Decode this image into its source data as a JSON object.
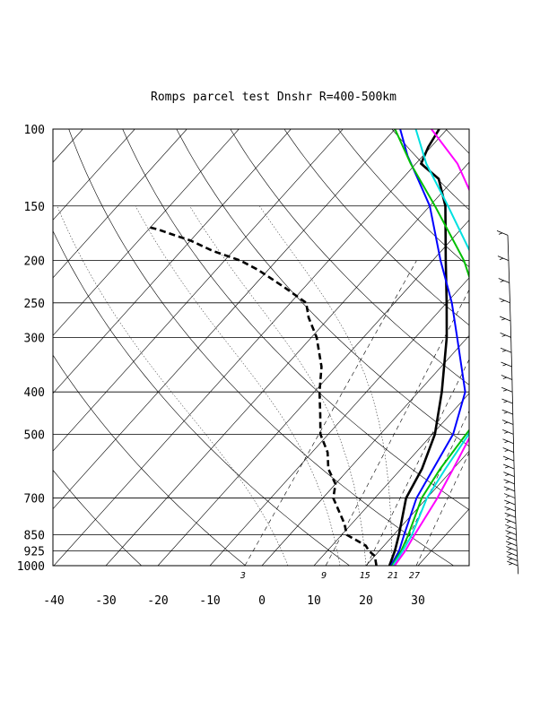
{
  "chart_data": {
    "type": "line",
    "diagram": "skew-T log-P",
    "title": "Romps parcel test Dnshr R=400-500km",
    "xlabel": "",
    "ylabel": "",
    "xlim": [
      -40,
      40
    ],
    "ylim": [
      1000,
      100
    ],
    "y_scale": "log",
    "x_ticks": [
      "-40",
      "-30",
      "-20",
      "-10",
      "0",
      "10",
      "20",
      "30"
    ],
    "x_tick_values": [
      -40,
      -30,
      -20,
      -10,
      0,
      10,
      20,
      30
    ],
    "p_ticks": [
      "100",
      "150",
      "200",
      "250",
      "300",
      "400",
      "500",
      "700",
      "850",
      "925",
      "1000"
    ],
    "p_tick_values": [
      100,
      150,
      200,
      250,
      300,
      400,
      500,
      700,
      850,
      925,
      1000
    ],
    "mixing_ratio_labels": [
      "3",
      "9",
      "15",
      "21",
      "27"
    ],
    "mixing_ratio_values": [
      3,
      9,
      15,
      21,
      27
    ],
    "grid": true,
    "series": [
      {
        "color": "#000000",
        "style": "solid",
        "values": [
          [
            1000,
            24.5
          ],
          [
            925,
            23.0
          ],
          [
            850,
            21.0
          ],
          [
            700,
            16.0
          ],
          [
            600,
            14.0
          ],
          [
            500,
            10.5
          ],
          [
            400,
            4.5
          ],
          [
            300,
            -4.0
          ],
          [
            250,
            -10.0
          ],
          [
            200,
            -17.5
          ],
          [
            150,
            -27.0
          ],
          [
            130,
            -33.0
          ],
          [
            120,
            -39.0
          ],
          [
            110,
            -40.5
          ],
          [
            100,
            -41.5
          ]
        ]
      },
      {
        "color": "#000000",
        "style": "dashed",
        "values": [
          [
            1000,
            22.0
          ],
          [
            950,
            20.0
          ],
          [
            925,
            18.0
          ],
          [
            900,
            16.5
          ],
          [
            850,
            11.0
          ],
          [
            800,
            8.5
          ],
          [
            700,
            2.0
          ],
          [
            650,
            0.0
          ],
          [
            600,
            -4.0
          ],
          [
            550,
            -7.0
          ],
          [
            500,
            -11.5
          ],
          [
            450,
            -15.0
          ],
          [
            400,
            -19.0
          ],
          [
            350,
            -23.0
          ],
          [
            300,
            -29.0
          ],
          [
            270,
            -34.0
          ],
          [
            250,
            -37.0
          ],
          [
            230,
            -44.0
          ],
          [
            210,
            -52.0
          ],
          [
            200,
            -57.0
          ],
          [
            190,
            -64.0
          ],
          [
            180,
            -70.0
          ],
          [
            175,
            -74.0
          ],
          [
            170,
            -78.0
          ],
          [
            168,
            -80.0
          ]
        ]
      },
      {
        "color": "#0000ff",
        "style": "solid",
        "values": [
          [
            1000,
            24.8
          ],
          [
            925,
            23.8
          ],
          [
            850,
            22.0
          ],
          [
            700,
            18.0
          ],
          [
            500,
            14.0
          ],
          [
            400,
            9.0
          ],
          [
            300,
            -2.0
          ],
          [
            250,
            -9.0
          ],
          [
            200,
            -18.5
          ],
          [
            150,
            -30.0
          ],
          [
            130,
            -37.0
          ],
          [
            115,
            -43.0
          ],
          [
            100,
            -49.0
          ]
        ]
      },
      {
        "color": "#00c000",
        "style": "solid",
        "values": [
          [
            1000,
            25.0
          ],
          [
            925,
            24.2
          ],
          [
            850,
            22.8
          ],
          [
            700,
            19.0
          ],
          [
            600,
            17.5
          ],
          [
            500,
            16.5
          ],
          [
            450,
            16.0
          ],
          [
            400,
            13.0
          ],
          [
            350,
            9.0
          ],
          [
            300,
            4.5
          ],
          [
            250,
            -4.0
          ],
          [
            200,
            -14.0
          ],
          [
            150,
            -29.0
          ],
          [
            120,
            -41.0
          ],
          [
            100,
            -50.0
          ]
        ]
      },
      {
        "color": "#00e0e0",
        "style": "solid",
        "values": [
          [
            1000,
            25.2
          ],
          [
            925,
            24.5
          ],
          [
            850,
            23.5
          ],
          [
            700,
            20.0
          ],
          [
            600,
            18.5
          ],
          [
            500,
            17.0
          ],
          [
            400,
            13.0
          ],
          [
            300,
            4.5
          ],
          [
            250,
            -2.0
          ],
          [
            200,
            -12.0
          ],
          [
            150,
            -26.5
          ],
          [
            120,
            -38.0
          ],
          [
            100,
            -46.0
          ]
        ]
      },
      {
        "color": "#ff00ff",
        "style": "solid",
        "values": [
          [
            1000,
            25.5
          ],
          [
            925,
            25.0
          ],
          [
            850,
            24.0
          ],
          [
            700,
            22.0
          ],
          [
            600,
            20.0
          ],
          [
            500,
            17.5
          ],
          [
            400,
            14.5
          ],
          [
            300,
            8.0
          ],
          [
            250,
            2.0
          ],
          [
            200,
            -8.0
          ],
          [
            150,
            -21.0
          ],
          [
            120,
            -32.0
          ],
          [
            100,
            -43.0
          ]
        ]
      }
    ],
    "wind_barbs": {
      "pressure_levels": [
        1000,
        975,
        950,
        925,
        900,
        875,
        850,
        825,
        800,
        775,
        750,
        725,
        700,
        675,
        650,
        625,
        600,
        575,
        550,
        525,
        500,
        475,
        450,
        425,
        400,
        375,
        350,
        325,
        300,
        275,
        250,
        225,
        200,
        175
      ]
    }
  }
}
